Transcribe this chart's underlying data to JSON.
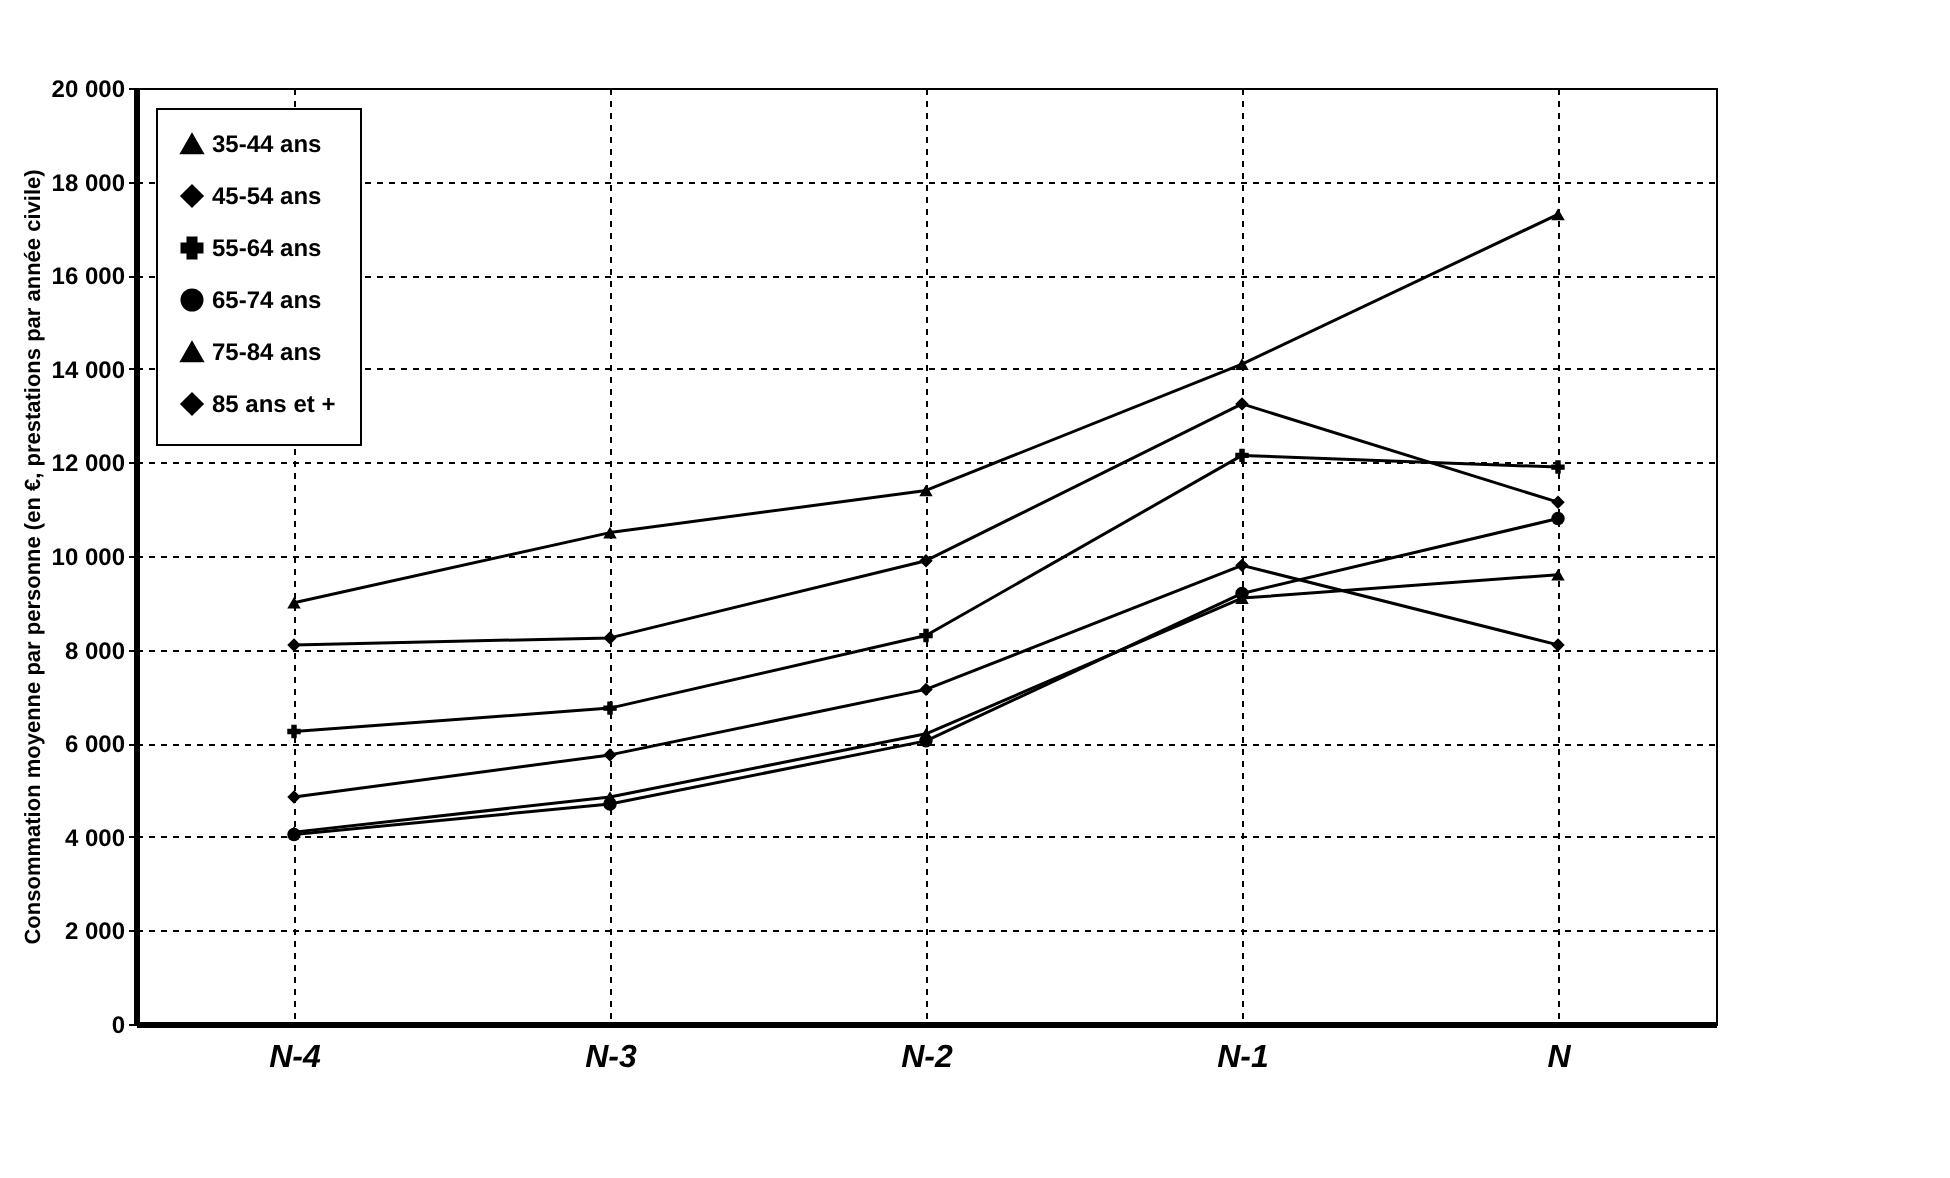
{
  "chart_data": {
    "type": "line",
    "ylabel": "Consommation moyenne par personne (en €, prestations par année civile)",
    "categories": [
      "N-4",
      "N-3",
      "N-2",
      "N-1",
      "N"
    ],
    "series": [
      {
        "name": "35-44 ans",
        "color": "#000000",
        "marker": "triangle",
        "values": [
          9000,
          10500,
          11400,
          14100,
          17300
        ]
      },
      {
        "name": "45-54 ans",
        "color": "#000000",
        "marker": "diamond",
        "values": [
          8100,
          8250,
          9900,
          13250,
          11150
        ]
      },
      {
        "name": "55-64 ans",
        "color": "#000000",
        "marker": "cross",
        "values": [
          6250,
          6750,
          8300,
          12150,
          11900
        ]
      },
      {
        "name": "65-74 ans",
        "color": "#000000",
        "marker": "circle",
        "values": [
          4050,
          4700,
          6050,
          9200,
          10800
        ]
      },
      {
        "name": "75-84 ans",
        "color": "#000000",
        "marker": "triangle",
        "values": [
          4100,
          4850,
          6200,
          9100,
          9600
        ]
      },
      {
        "name": "85 ans et +",
        "color": "#000000",
        "marker": "diamond",
        "values": [
          4850,
          5750,
          7150,
          9800,
          8100
        ]
      }
    ],
    "ylim": [
      0,
      20000
    ],
    "yticks": [
      {
        "value": 0,
        "label": "0"
      },
      {
        "value": 2000,
        "label": "2 000"
      },
      {
        "value": 4000,
        "label": "4 000"
      },
      {
        "value": 6000,
        "label": "6 000"
      },
      {
        "value": 8000,
        "label": "8 000"
      },
      {
        "value": 10000,
        "label": "10 000"
      },
      {
        "value": 12000,
        "label": "12 000"
      },
      {
        "value": 14000,
        "label": "14 000"
      },
      {
        "value": 16000,
        "label": "16 000"
      },
      {
        "value": 18000,
        "label": "18 000"
      },
      {
        "value": 20000,
        "label": "20 000"
      }
    ],
    "grid": true,
    "legend": "top left",
    "line_style": "solid"
  }
}
